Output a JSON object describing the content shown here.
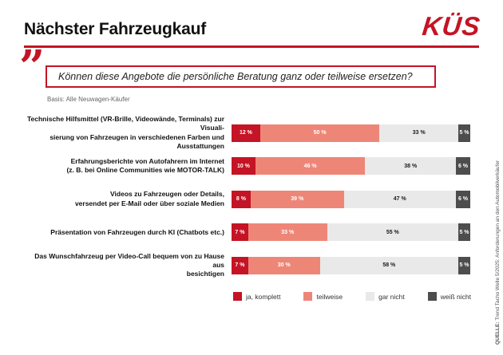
{
  "header": {
    "title": "Nächster Fahrzeugkauf",
    "logo": "KÜS"
  },
  "quote": {
    "mark": "”",
    "text": "Können diese Angebote die persönliche Beratung ganz oder teilweise ersetzen?",
    "basis": "Basis: Alle Neuwagen-Käufer"
  },
  "chart_data": {
    "type": "bar",
    "orientation": "horizontal_stacked",
    "unit": "%",
    "xlim": [
      0,
      100
    ],
    "grid": false,
    "legend_position": "bottom",
    "categories": [
      [
        "Technische Hilfsmittel (VR-Brille, Videowände, Terminals) zur Visuali-",
        "sierung von Fahrzeugen in verschiedenen Farben und Ausstattungen"
      ],
      [
        "Erfahrungsberichte von Autofahrern im Internet",
        "(z. B. bei Online Communities wie MOTOR-TALK)"
      ],
      [
        "Videos zu Fahrzeugen oder Details,",
        "versendet per E-Mail oder über soziale Medien"
      ],
      [
        "Präsentation von Fahrzeugen durch KI (Chatbots etc.)"
      ],
      [
        "Das Wunschfahrzeug per Video-Call bequem von zu Hause aus",
        "besichtigen"
      ]
    ],
    "series": [
      {
        "name": "ja, komplett",
        "color": "#c41425",
        "text_color": "#ffffff",
        "values": [
          12,
          10,
          8,
          7,
          7
        ]
      },
      {
        "name": "teilweise",
        "color": "#ee8678",
        "text_color": "#ffffff",
        "values": [
          50,
          46,
          39,
          33,
          30
        ]
      },
      {
        "name": "gar nicht",
        "color": "#e9e9e9",
        "text_color": "#1a1a1a",
        "values": [
          33,
          38,
          47,
          55,
          58
        ]
      },
      {
        "name": "weiß nicht",
        "color": "#4d4d4d",
        "text_color": "#ffffff",
        "values": [
          5,
          6,
          6,
          5,
          5
        ]
      }
    ]
  },
  "source": {
    "label": "QUELLE:",
    "text": "Trend Tacho Welle 5/2025: Anforderungen an den Automobilverkäufer"
  },
  "colors": {
    "brand_red": "#c41425",
    "salmon": "#ee8678",
    "light_gray": "#e9e9e9",
    "dark_gray": "#4d4d4d"
  }
}
